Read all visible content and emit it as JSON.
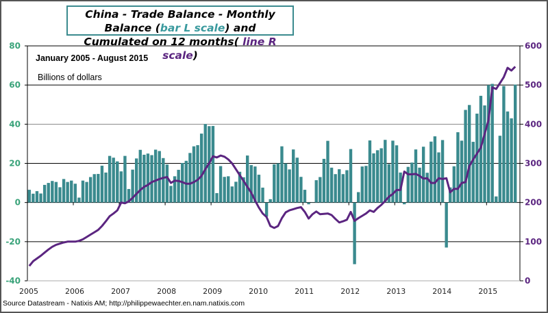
{
  "chart_data": {
    "type": "bar+line",
    "title_parts": {
      "line1_a": "China - Trade Balance  - Monthly Balance (",
      "line1_b": "bar L scale",
      "line1_c": ") and",
      "line2_a": "Cumulated on 12 months( ",
      "line2_b": "line R scale",
      "line2_c": ")"
    },
    "subtitle": "January 2005 - August 2015",
    "unit_label": "Billions  of dollars",
    "source": "Source Datastream - Natixis AM;  http://philippewaechter.en.nam.natixis.com",
    "x_tick_labels": [
      "2005",
      "2006",
      "2007",
      "2008",
      "2009",
      "2010",
      "2011",
      "2012",
      "2013",
      "2014",
      "2015"
    ],
    "left_axis": {
      "range": [
        -40,
        80
      ],
      "ticks": [
        "-40",
        "-20",
        "0",
        "20",
        "40",
        "60",
        "80"
      ],
      "color": "#3aa37a"
    },
    "right_axis": {
      "range": [
        0,
        600
      ],
      "ticks": [
        "0",
        "100",
        "200",
        "300",
        "400",
        "500",
        "600"
      ],
      "color": "#5b2580"
    },
    "grid": true,
    "start": "2005-01",
    "end": "2015-08",
    "series": [
      {
        "type": "bar",
        "axis": "left",
        "color": "#3a8a8e",
        "values": [
          6.5,
          4.5,
          5.8,
          4.6,
          9,
          10,
          11,
          10.5,
          7.8,
          12,
          10.5,
          11.2,
          9.6,
          2.5,
          11.2,
          10.5,
          13,
          14.5,
          14.6,
          18.8,
          15.3,
          23.8,
          22.9,
          21,
          15.9,
          23.8,
          6.9,
          16.8,
          22.5,
          26.9,
          24.4,
          25,
          24.2,
          27,
          26.3,
          22.7,
          19.4,
          8.5,
          13.4,
          16.7,
          20.2,
          21.3,
          25.3,
          28.7,
          29.3,
          35.2,
          40.1,
          39,
          39.1,
          4.8,
          18.6,
          13.1,
          13.4,
          8.2,
          10.6,
          15.7,
          12.9,
          24,
          19.1,
          18.4,
          14.2,
          7.6,
          -7.2,
          1.7,
          19.5,
          20,
          28.7,
          20,
          16.9,
          27.1,
          22.9,
          13.1,
          6.5,
          -0.9,
          0.1,
          11.4,
          13,
          22.3,
          31.5,
          17.8,
          14.5,
          17,
          14.5,
          16.5,
          27.3,
          -31.5,
          5.3,
          18.4,
          18.7,
          31.7,
          25.1,
          26.7,
          27.7,
          32,
          19.6,
          31.6,
          29.2,
          15.3,
          -0.9,
          18.2,
          20.4,
          27.1,
          17.8,
          28.5,
          15.2,
          31.1,
          33.8,
          25.6,
          31.9,
          -23,
          7.7,
          18.5,
          35.9,
          31.6,
          47.3,
          49.8,
          31,
          45.4,
          54.5,
          49.6,
          60,
          60.6,
          3.1,
          34.1,
          59.5,
          46.5,
          43,
          60.2
        ]
      },
      {
        "type": "line",
        "axis": "right",
        "color": "#5b2580",
        "values": [
          38,
          50,
          57,
          64,
          72,
          80,
          87,
          92,
          95,
          98,
          100,
          100,
          100,
          102,
          106,
          112,
          118,
          124,
          130,
          140,
          152,
          165,
          172,
          180,
          200,
          198,
          203,
          212,
          222,
          232,
          240,
          245,
          252,
          256,
          260,
          263,
          265,
          250,
          256,
          255,
          252,
          248,
          248,
          252,
          258,
          268,
          285,
          300,
          318,
          315,
          320,
          317,
          310,
          300,
          285,
          270,
          255,
          240,
          225,
          205,
          187,
          172,
          163,
          140,
          135,
          140,
          160,
          175,
          180,
          183,
          186,
          188,
          176,
          159,
          170,
          177,
          170,
          171,
          172,
          168,
          158,
          149,
          152,
          156,
          176,
          153,
          160,
          166,
          172,
          180,
          176,
          186,
          194,
          204,
          215,
          222,
          232,
          232,
          279,
          272,
          272,
          273,
          268,
          261,
          262,
          250,
          250,
          262,
          260,
          262,
          226,
          235,
          235,
          250,
          252,
          293,
          310,
          325,
          340,
          375,
          410,
          494,
          490,
          505,
          520,
          544,
          537,
          547
        ]
      }
    ]
  }
}
